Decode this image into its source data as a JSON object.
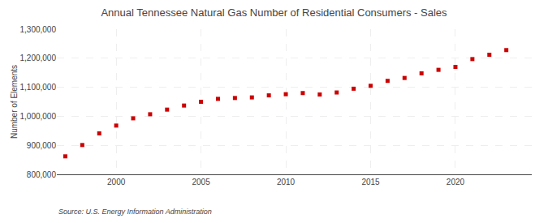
{
  "chart_data": {
    "type": "scatter",
    "title": "Annual Tennessee Natural Gas Number of Residential Consumers - Sales",
    "ylabel": "Number of Elements",
    "source": "Source: U.S. Energy Information Administration",
    "color": "#cc0000",
    "marker": "square",
    "grid": true,
    "x": [
      1997,
      1998,
      1999,
      2000,
      2001,
      2002,
      2003,
      2004,
      2005,
      2006,
      2007,
      2008,
      2009,
      2010,
      2011,
      2012,
      2013,
      2014,
      2015,
      2016,
      2017,
      2018,
      2019,
      2020,
      2021,
      2022,
      2023
    ],
    "values": [
      862000,
      901000,
      941000,
      968000,
      993000,
      1007000,
      1023000,
      1037000,
      1050000,
      1060000,
      1063000,
      1065000,
      1072000,
      1076000,
      1080000,
      1075000,
      1082000,
      1095000,
      1105000,
      1122000,
      1132000,
      1148000,
      1160000,
      1170000,
      1197000,
      1212000,
      1228000
    ],
    "xlim": [
      1996.5,
      2024.5
    ],
    "xticks": [
      2000,
      2005,
      2010,
      2015,
      2020
    ],
    "ylim": [
      800000,
      1300000
    ],
    "yticks": [
      {
        "value": 800000,
        "label": "800,000"
      },
      {
        "value": 900000,
        "label": "900,000"
      },
      {
        "value": 1000000,
        "label": "1,000,000"
      },
      {
        "value": 1100000,
        "label": "1,100,000"
      },
      {
        "value": 1200000,
        "label": "1,200,000"
      },
      {
        "value": 1300000,
        "label": "1,300,000"
      }
    ]
  }
}
